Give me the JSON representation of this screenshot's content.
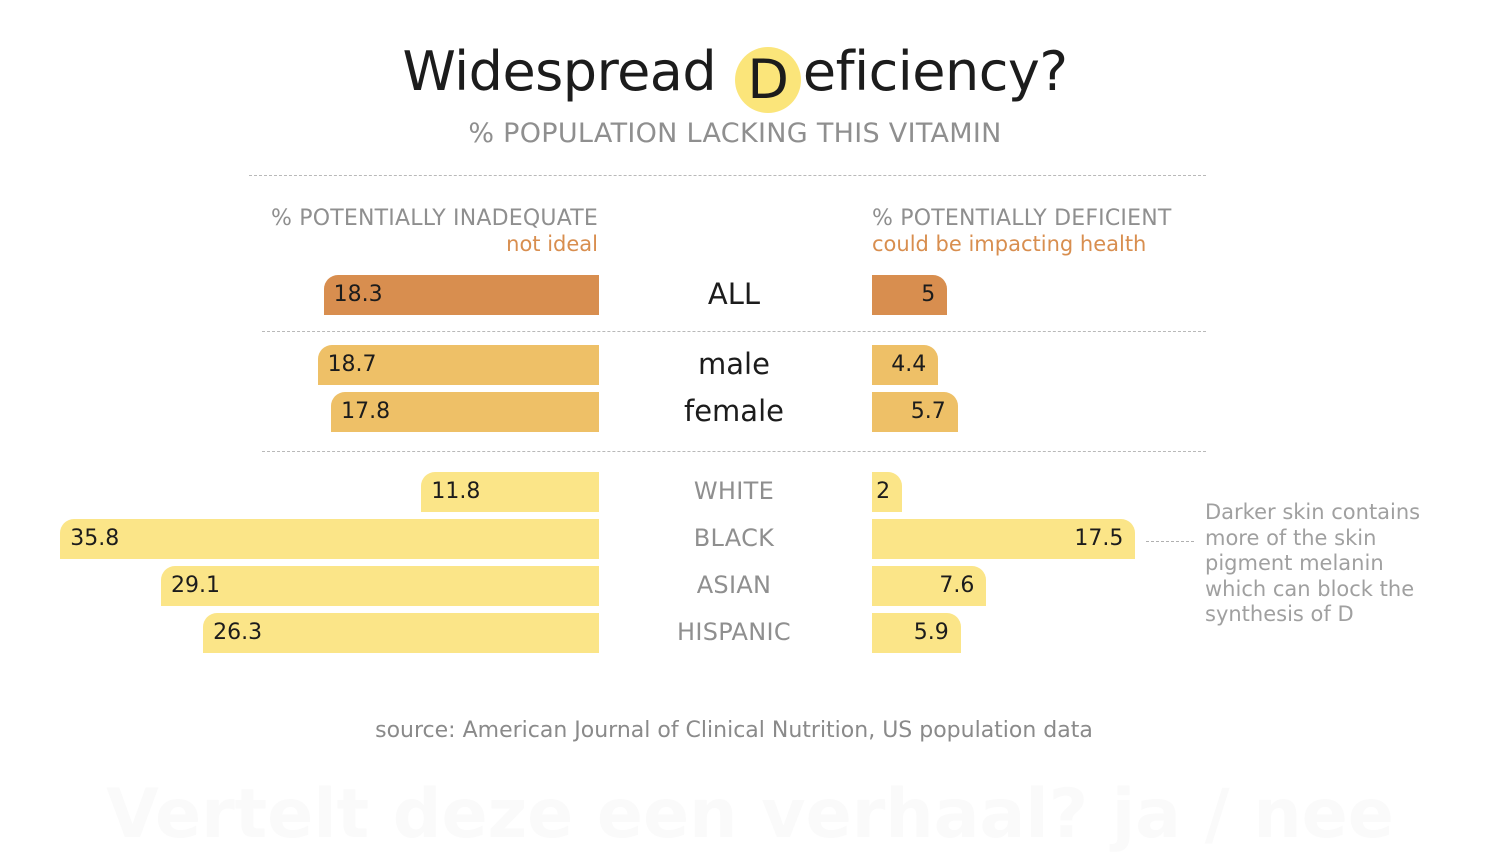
{
  "title": {
    "before": "Widespread ",
    "highlight": "D",
    "after": "eficiency?",
    "highlight_color": "#fbe57a"
  },
  "subtitle": "% POPULATION LACKING THIS VITAMIN",
  "left_header": {
    "title": "% POTENTIALLY INADEQUATE",
    "subtitle": "not ideal"
  },
  "right_header": {
    "title": "% POTENTIALLY DEFICIENT",
    "subtitle": "could be impacting health"
  },
  "note": "Darker skin contains more of the skin pigment melanin which can block the synthesis of D",
  "source": "source: American Journal of Clinical Nutrition, US population data",
  "watermark": "Vertelt deze een verhaal? ja / nee",
  "colors": {
    "all": "#d88e4f",
    "sex": "#eec067",
    "race": "#fbe588",
    "subtitle_accent": "#d88e4f"
  },
  "chart_data": {
    "type": "bar",
    "orientation": "horizontal-diverging",
    "categories": [
      "ALL",
      "male",
      "female",
      "WHITE",
      "BLACK",
      "ASIAN",
      "HISPANIC"
    ],
    "groups": [
      "all",
      "sex",
      "sex",
      "race",
      "race",
      "race",
      "race"
    ],
    "series": [
      {
        "name": "% POTENTIALLY INADEQUATE",
        "values": [
          18.3,
          18.7,
          17.8,
          11.8,
          35.8,
          29.1,
          26.3
        ]
      },
      {
        "name": "% POTENTIALLY DEFICIENT",
        "values": [
          5,
          4.4,
          5.7,
          2,
          17.5,
          7.6,
          5.9
        ]
      }
    ],
    "data_labels": {
      "left": [
        "18.3",
        "18.7",
        "17.8",
        "11.8",
        "35.8",
        "29.1",
        "26.3"
      ],
      "right": [
        "5",
        "4.4",
        "5.7",
        "2",
        "17.5",
        "7.6",
        "5.9"
      ]
    },
    "grid": false,
    "legend": "none"
  }
}
